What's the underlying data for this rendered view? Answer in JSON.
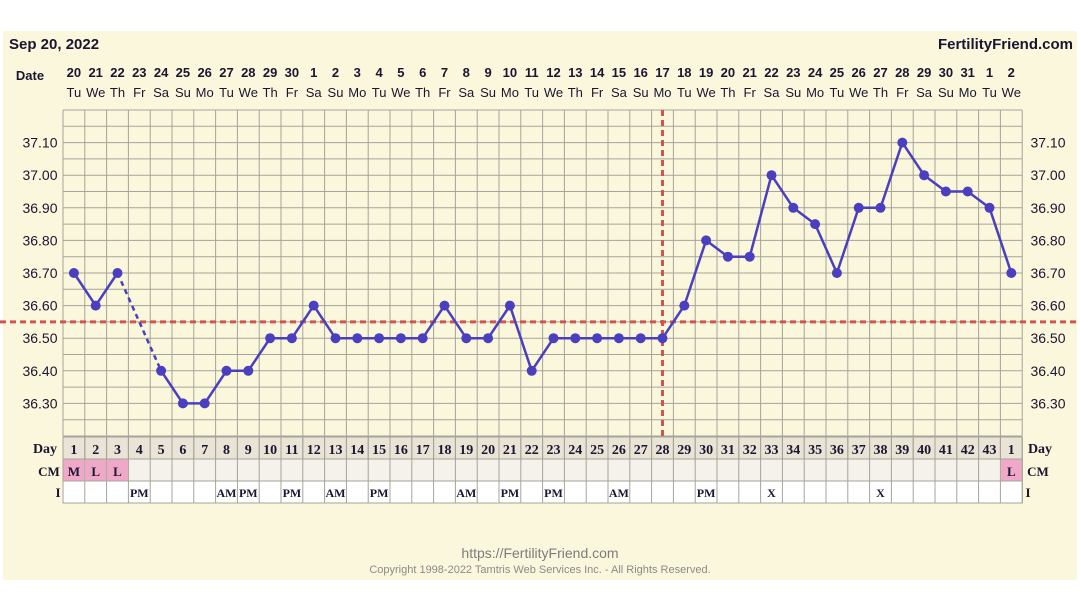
{
  "header": {
    "date_label": "Sep 20, 2022",
    "brand": "FertilityFriend.com"
  },
  "footer": {
    "url": "https://FertilityFriend.com",
    "copyright": "Copyright 1998-2022 Tamtris Web Services Inc. - All Rights Reserved."
  },
  "row_labels": {
    "date": "Date",
    "day": "Day",
    "cm": "CM",
    "intercourse": "I"
  },
  "colors": {
    "background": "#fbf7dc",
    "line": "#4a3fbf",
    "coverline": "#d0554f",
    "cm_highlight": "#f0a8c8",
    "grid": "#a6a39a"
  },
  "chart_data": {
    "type": "line",
    "ylim": [
      36.2,
      37.2
    ],
    "yticks": [
      "37.10",
      "37.00",
      "36.90",
      "36.80",
      "36.70",
      "36.60",
      "36.50",
      "36.40",
      "36.30"
    ],
    "dates": [
      "20",
      "21",
      "22",
      "23",
      "24",
      "25",
      "26",
      "27",
      "28",
      "29",
      "30",
      "1",
      "2",
      "3",
      "4",
      "5",
      "6",
      "7",
      "8",
      "9",
      "10",
      "11",
      "12",
      "13",
      "14",
      "15",
      "16",
      "17",
      "18",
      "19",
      "20",
      "21",
      "22",
      "23",
      "24",
      "25",
      "26",
      "27",
      "28",
      "29",
      "30",
      "31",
      "1",
      "2"
    ],
    "weekdays": [
      "Tu",
      "We",
      "Th",
      "Fr",
      "Sa",
      "Su",
      "Mo",
      "Tu",
      "We",
      "Th",
      "Fr",
      "Sa",
      "Su",
      "Mo",
      "Tu",
      "We",
      "Th",
      "Fr",
      "Sa",
      "Su",
      "Mo",
      "Tu",
      "We",
      "Th",
      "Fr",
      "Sa",
      "Su",
      "Mo",
      "Tu",
      "We",
      "Th",
      "Fr",
      "Sa",
      "Su",
      "Mo",
      "Tu",
      "We",
      "Th",
      "Fr",
      "Sa",
      "Su",
      "Mo",
      "Tu",
      "We"
    ],
    "cycle_days": [
      "1",
      "2",
      "3",
      "4",
      "5",
      "6",
      "7",
      "8",
      "9",
      "10",
      "11",
      "12",
      "13",
      "14",
      "15",
      "16",
      "17",
      "18",
      "19",
      "20",
      "21",
      "22",
      "23",
      "24",
      "25",
      "26",
      "27",
      "28",
      "29",
      "30",
      "31",
      "32",
      "33",
      "34",
      "35",
      "36",
      "37",
      "38",
      "39",
      "40",
      "41",
      "42",
      "43",
      "1"
    ],
    "temperatures": [
      36.7,
      36.6,
      36.7,
      null,
      36.4,
      36.3,
      36.3,
      36.4,
      36.4,
      36.5,
      36.5,
      36.6,
      36.5,
      36.5,
      36.5,
      36.5,
      36.5,
      36.6,
      36.5,
      36.5,
      36.6,
      36.4,
      36.5,
      36.5,
      36.5,
      36.5,
      36.5,
      36.5,
      36.6,
      36.8,
      36.75,
      36.75,
      37.0,
      36.9,
      36.85,
      36.7,
      36.9,
      36.9,
      37.1,
      37.0,
      36.95,
      36.95,
      36.9,
      36.7
    ],
    "coverline": 36.55,
    "ovulation_after_index": 27,
    "cervical_mucus": [
      "M",
      "L",
      "L",
      "",
      "",
      "",
      "",
      "",
      "",
      "",
      "",
      "",
      "",
      "",
      "",
      "",
      "",
      "",
      "",
      "",
      "",
      "",
      "",
      "",
      "",
      "",
      "",
      "",
      "",
      "",
      "",
      "",
      "",
      "",
      "",
      "",
      "",
      "",
      "",
      "",
      "",
      "",
      "",
      "L"
    ],
    "intercourse": [
      "",
      "",
      "",
      "PM",
      "",
      "",
      "",
      "AM",
      "PM",
      "",
      "PM",
      "",
      "AM",
      "",
      "PM",
      "",
      "",
      "",
      "AM",
      "",
      "PM",
      "",
      "PM",
      "",
      "",
      "AM",
      "",
      "",
      "",
      "PM",
      "",
      "",
      "X",
      "",
      "",
      "",
      "",
      "X",
      "",
      "",
      "",
      "",
      "",
      ""
    ]
  }
}
